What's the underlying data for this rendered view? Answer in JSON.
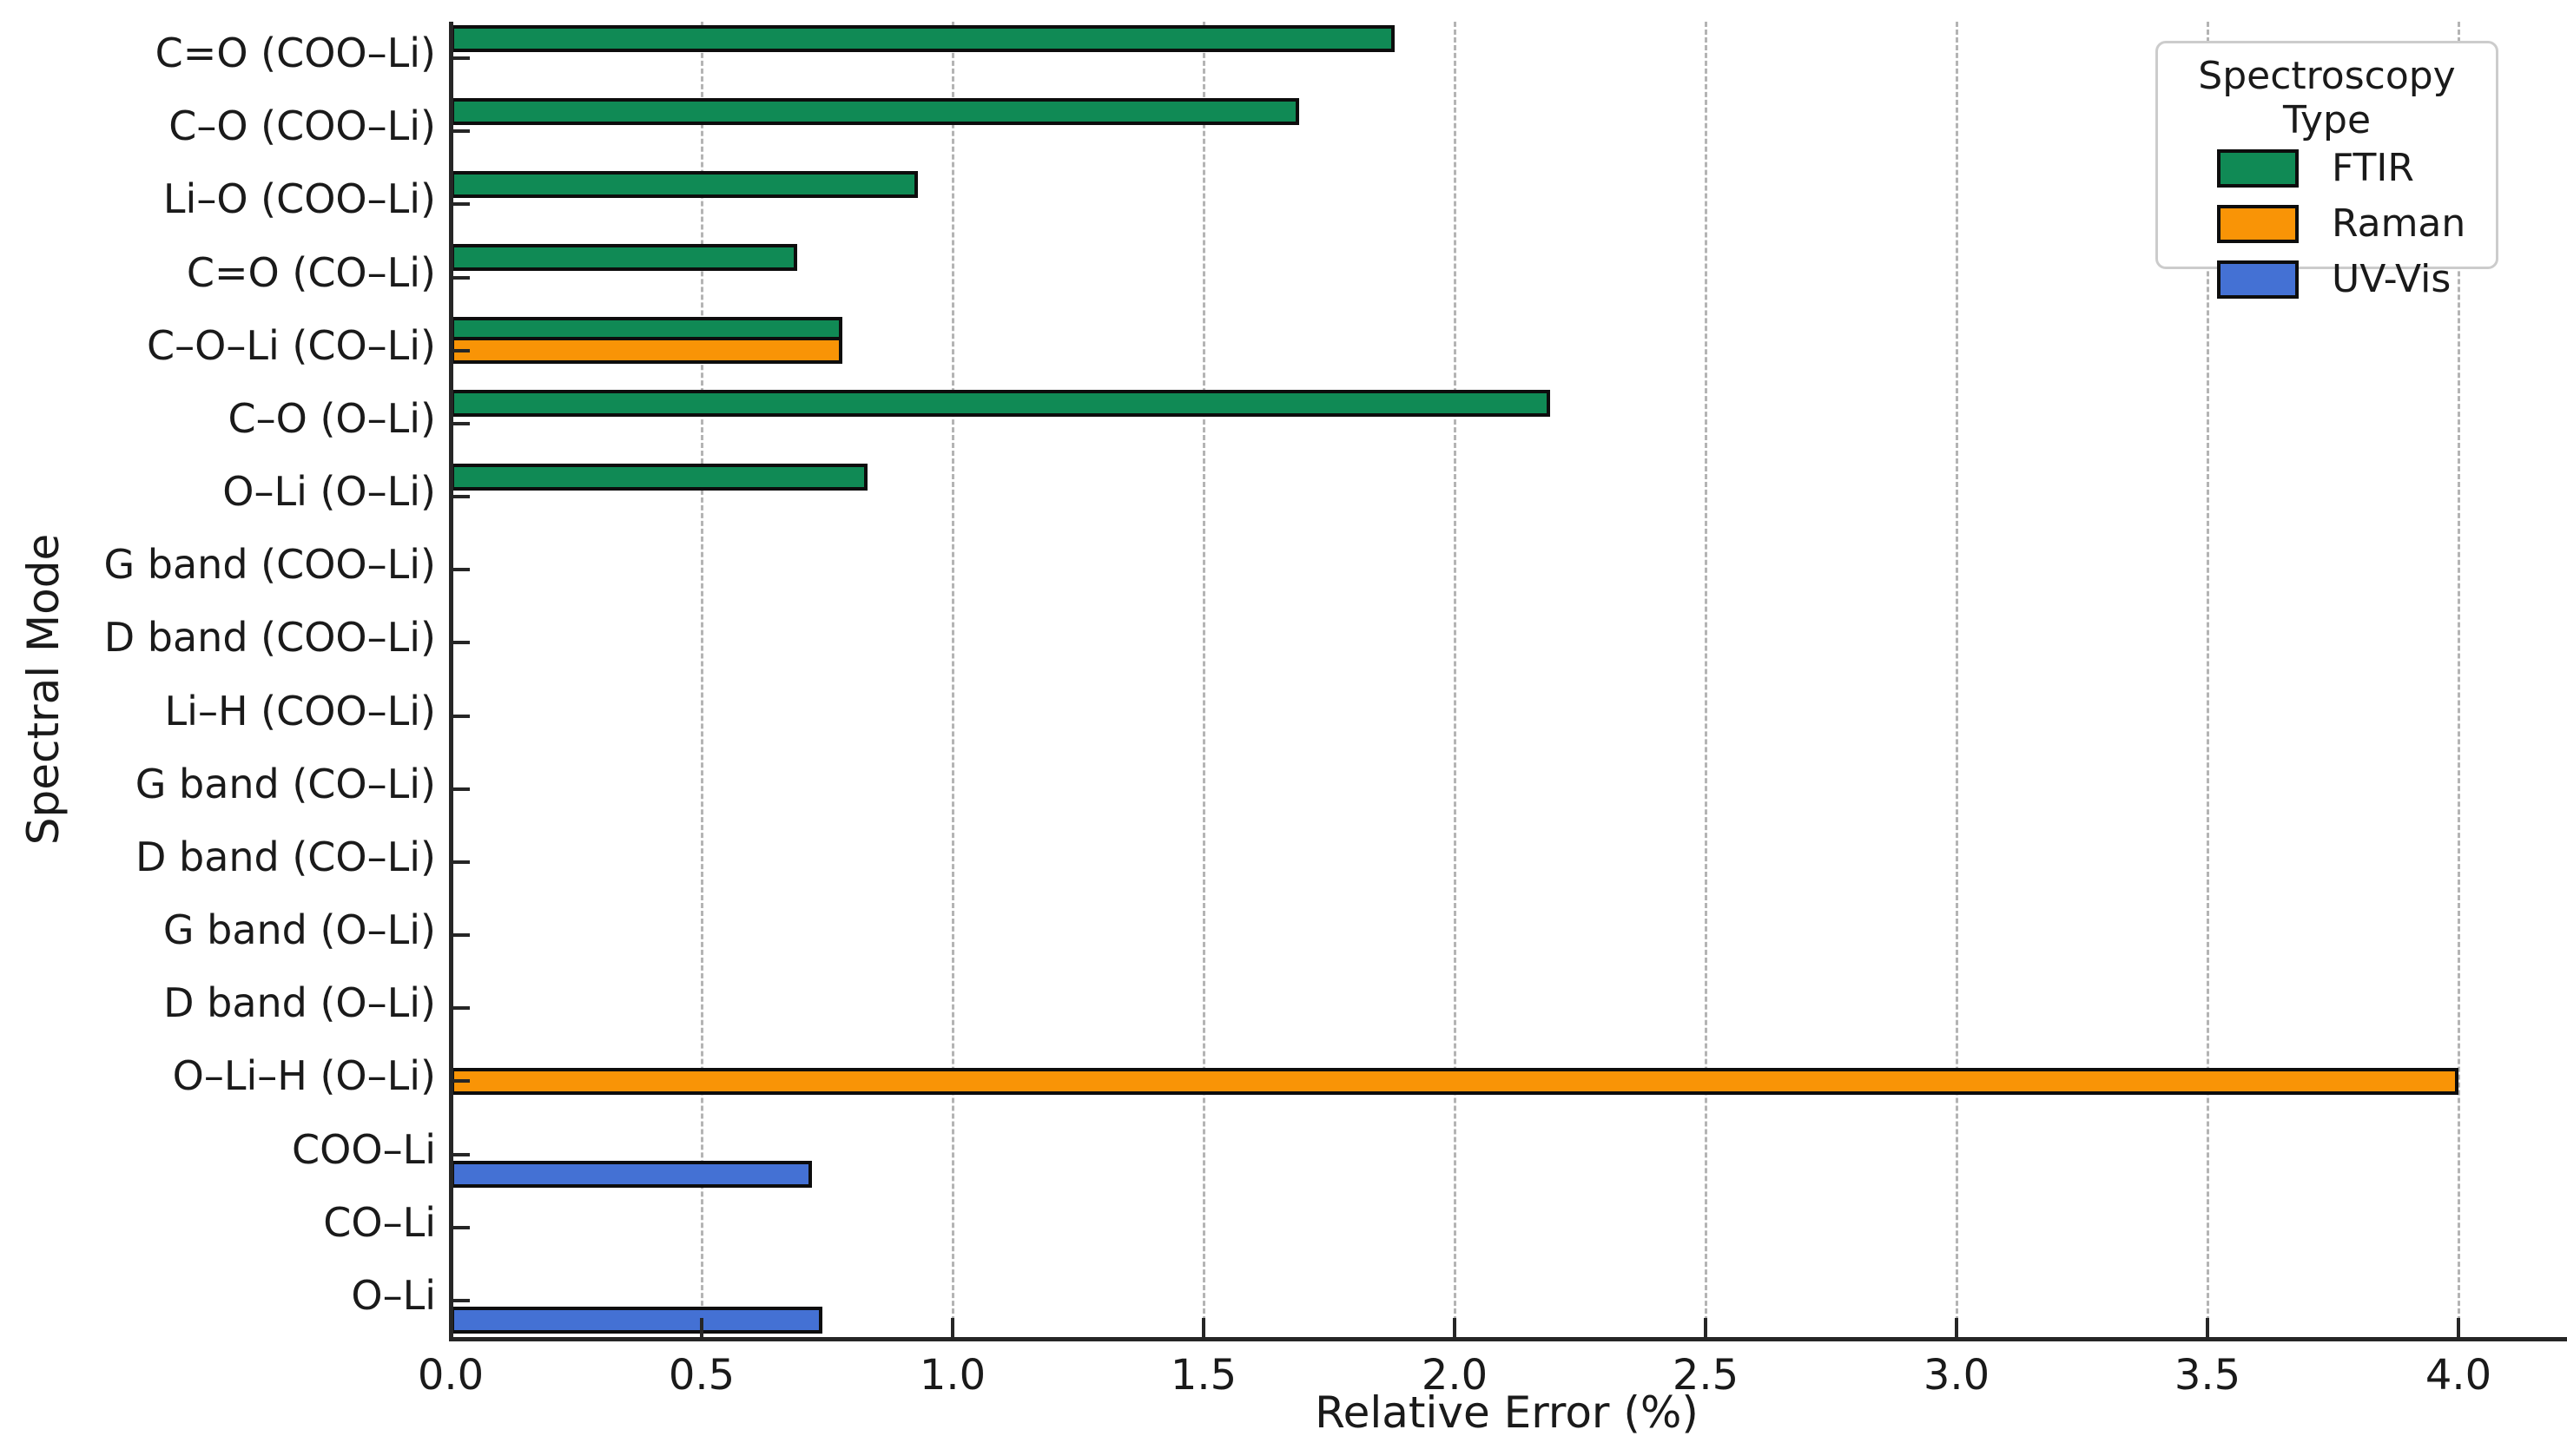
{
  "chart_data": {
    "type": "bar",
    "orientation": "horizontal",
    "xlabel": "Relative Error (%)",
    "ylabel": "Spectral Mode",
    "xlim": [
      0,
      4.2
    ],
    "xticks": [
      0.0,
      0.5,
      1.0,
      1.5,
      2.0,
      2.5,
      3.0,
      3.5,
      4.0
    ],
    "xtick_labels": [
      "0.0",
      "0.5",
      "1.0",
      "1.5",
      "2.0",
      "2.5",
      "3.0",
      "3.5",
      "4.0"
    ],
    "grid": "vertical dashed gridlines every 0.5, no gridline at 0",
    "legend_position": "upper right",
    "legend_title": "Spectroscopy Type",
    "categories": [
      "C=O (COO–Li)",
      "C–O (COO–Li)",
      "Li–O (COO–Li)",
      "C=O (CO–Li)",
      "C–O–Li (CO–Li)",
      "C–O (O–Li)",
      "O–Li (O–Li)",
      "G band (COO–Li)",
      "D band (COO–Li)",
      "Li–H (COO–Li)",
      "G band (CO–Li)",
      "D band (CO–Li)",
      "G band (O–Li)",
      "D band (O–Li)",
      "O–Li–H (O–Li)",
      "COO–Li",
      "CO–Li",
      "O–Li"
    ],
    "series": [
      {
        "name": "FTIR",
        "color": "#108a55",
        "values": [
          1.88,
          1.69,
          0.93,
          0.69,
          0.78,
          2.19,
          0.83,
          0,
          0,
          0,
          0,
          0,
          0,
          0,
          0,
          0,
          0,
          0
        ]
      },
      {
        "name": "Raman",
        "color": "#f99406",
        "values": [
          0,
          0,
          0,
          0,
          0.78,
          0,
          0,
          0,
          0,
          0,
          0,
          0,
          0,
          0,
          4.0,
          0,
          0,
          0
        ]
      },
      {
        "name": "UV-Vis",
        "color": "#4471d4",
        "values": [
          0,
          0,
          0,
          0,
          0,
          0,
          0,
          0,
          0,
          0,
          0,
          0,
          0,
          0,
          0,
          0.72,
          0,
          0.74
        ]
      }
    ],
    "bar_edge_color": "#0d0d0d",
    "gridline_color": "#b4b4b4"
  }
}
